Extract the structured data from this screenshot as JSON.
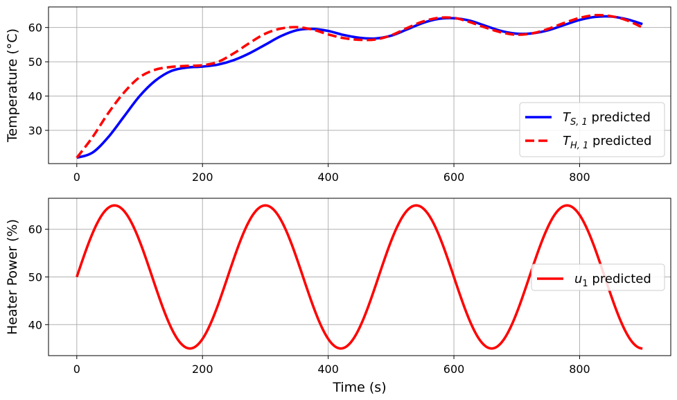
{
  "chart_data": [
    {
      "type": "line",
      "title": "",
      "xlabel": "",
      "ylabel": "Temperature (°C)",
      "xlim": [
        -45,
        945
      ],
      "ylim": [
        20.3,
        66
      ],
      "xticks": [
        0,
        200,
        400,
        600,
        800
      ],
      "yticks": [
        30,
        40,
        50,
        60
      ],
      "grid": true,
      "legend_position": "lower right",
      "series": [
        {
          "name": "T_S,1 predicted",
          "legend_main": "T",
          "legend_sub": "S, 1",
          "legend_rest": " predicted",
          "color": "#0000ff",
          "style": "solid",
          "x": [
            0,
            25,
            50,
            75,
            100,
            125,
            150,
            175,
            200,
            225,
            250,
            275,
            300,
            325,
            350,
            375,
            400,
            425,
            450,
            475,
            500,
            525,
            550,
            575,
            600,
            625,
            650,
            675,
            700,
            725,
            750,
            775,
            800,
            825,
            850,
            875,
            900
          ],
          "y": [
            22,
            23.5,
            28,
            34,
            40,
            44.5,
            47.3,
            48.3,
            48.6,
            49.2,
            50.5,
            52.5,
            55,
            57.5,
            59.2,
            59.6,
            59,
            57.8,
            57,
            56.8,
            57.6,
            59.4,
            61.3,
            62.5,
            62.7,
            62,
            60.5,
            59,
            58.2,
            58.3,
            59.2,
            60.7,
            62.2,
            63.1,
            63.2,
            62.4,
            61
          ]
        },
        {
          "name": "T_H,1 predicted",
          "legend_main": "T",
          "legend_sub": "H, 1",
          "legend_rest": " predicted",
          "color": "#ff0000",
          "style": "dashed",
          "x": [
            0,
            25,
            50,
            75,
            100,
            125,
            150,
            175,
            200,
            225,
            250,
            275,
            300,
            325,
            350,
            375,
            400,
            425,
            450,
            475,
            500,
            525,
            550,
            575,
            600,
            625,
            650,
            675,
            700,
            725,
            750,
            775,
            800,
            825,
            850,
            875,
            900
          ],
          "y": [
            22,
            28,
            35,
            41,
            45.5,
            47.7,
            48.5,
            48.8,
            49,
            50,
            52.5,
            55.5,
            58.2,
            59.7,
            60.1,
            59.4,
            58,
            56.9,
            56.4,
            56.5,
            57.7,
            59.8,
            61.7,
            62.8,
            62.8,
            61.6,
            60,
            58.6,
            57.9,
            58.3,
            59.6,
            61.3,
            62.8,
            63.6,
            63.3,
            62.1,
            60
          ]
        }
      ]
    },
    {
      "type": "line",
      "title": "",
      "xlabel": "Time (s)",
      "ylabel": "Heater Power (%)",
      "xlim": [
        -45,
        945
      ],
      "ylim": [
        33.5,
        66.5
      ],
      "xticks": [
        0,
        200,
        400,
        600,
        800
      ],
      "yticks": [
        40,
        50,
        60
      ],
      "grid": true,
      "legend_position": "center right",
      "series": [
        {
          "name": "u_1 predicted",
          "legend_main": "u",
          "legend_sub": "1",
          "legend_rest": " predicted",
          "color": "#ff0000",
          "style": "solid",
          "function": "50 + 15*sin(2*pi*t/240)",
          "x_range": [
            0,
            900
          ],
          "amplitude": 15,
          "offset": 50,
          "period_s": 240
        }
      ]
    }
  ]
}
